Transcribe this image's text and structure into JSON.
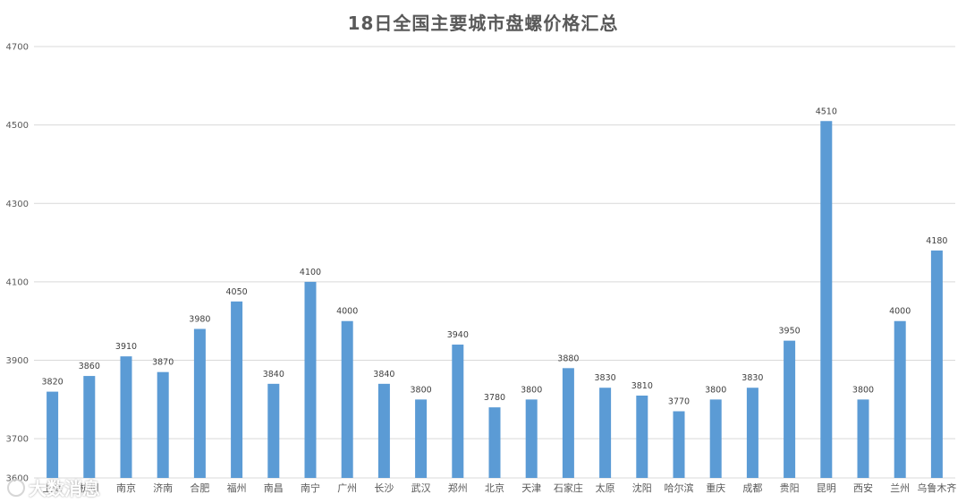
{
  "chart_data": {
    "type": "bar",
    "title": "18日全国主要城市盘螺价格汇总",
    "xlabel": "",
    "ylabel": "",
    "ylim": [
      3600,
      4700
    ],
    "yticks": [
      "3600",
      "3700",
      "3900",
      "4100",
      "4300",
      "4500",
      "4700"
    ],
    "categories": [
      "上海",
      "杭州",
      "南京",
      "济南",
      "合肥",
      "福州",
      "南昌",
      "南宁",
      "广州",
      "长沙",
      "武汉",
      "郑州",
      "北京",
      "天津",
      "石家庄",
      "太原",
      "沈阳",
      "哈尔滨",
      "重庆",
      "成都",
      "贵阳",
      "昆明",
      "西安",
      "兰州",
      "乌鲁木齐"
    ],
    "series": [
      {
        "values": [
          3820,
          3860,
          3910,
          3870,
          3980,
          4050,
          3840,
          4100,
          4000,
          3840,
          3800,
          3940,
          3780,
          3800,
          3880,
          3830,
          3810,
          3770,
          3800,
          3830,
          3950,
          4510,
          3800,
          4000,
          4180
        ],
        "color": "#5b9bd5"
      }
    ],
    "grid": true,
    "legend": "none"
  },
  "watermark": {
    "text": "大数消息"
  }
}
